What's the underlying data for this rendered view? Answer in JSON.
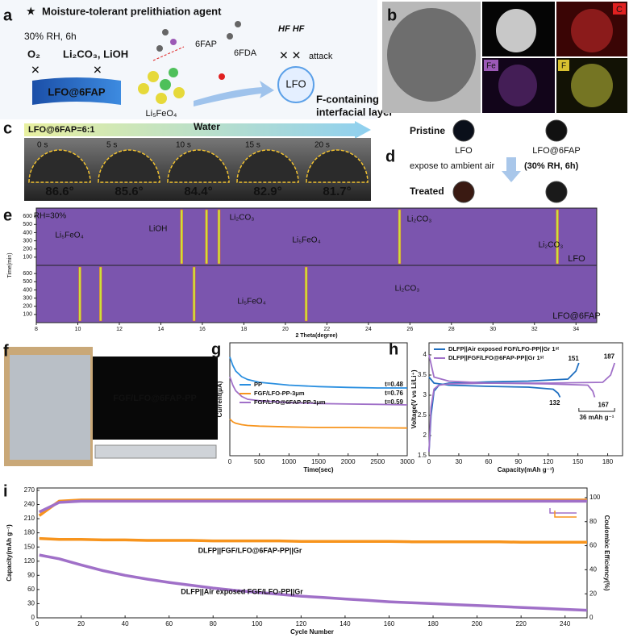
{
  "panels": {
    "letters": [
      "a",
      "b",
      "c",
      "d",
      "e",
      "f",
      "g",
      "h",
      "i"
    ],
    "a": {
      "title": "Moisture-tolerant prelithiation agent",
      "condition": "30% RH, 6h",
      "o2": "O₂",
      "byproducts": "Li₂CO₃, LiOH",
      "fap": "6FAP",
      "fda": "6FDA",
      "hf": "HF HF",
      "attack": "attack",
      "coated": "LFO@6FAP",
      "crystal": "Li₅FeO₄",
      "lfo": "LFO",
      "layer": [
        "F-containing",
        "interfacial layer"
      ]
    },
    "b": {
      "maps": [
        "C",
        "Fe",
        "F"
      ]
    },
    "c": {
      "ratio": "LFO@6FAP=6:1",
      "medium": "Water",
      "times": [
        "0 s",
        "5 s",
        "10 s",
        "15 s",
        "20 s"
      ],
      "angles": [
        "86.6°",
        "85.6°",
        "84.4°",
        "82.9°",
        "81.7°"
      ]
    },
    "d": {
      "pristine": "Pristine",
      "lfo": "LFO",
      "coated": "LFO@6FAP",
      "exposure": "expose to ambient air",
      "condition": "(30% RH, 6h)",
      "treated": "Treated"
    },
    "f": {
      "label": "FGF/LFO@6FAP-PP"
    }
  },
  "chart_data": [
    {
      "type": "contour",
      "xlabel": "2 Theta(degree)",
      "ylabel": "Time(min)",
      "xlim": [
        8,
        35
      ],
      "xticks": [
        8,
        10,
        12,
        14,
        16,
        18,
        20,
        22,
        24,
        26,
        28,
        30,
        32,
        34
      ],
      "ylim": [
        0,
        700
      ],
      "yticks": [
        100,
        200,
        300,
        400,
        500,
        600
      ],
      "background": "#7b55ae",
      "peak_color": "#c9e23c",
      "annotations": [
        "RH=30%",
        "Li₅FeO₄",
        "LiOH",
        "Li₂CO₃",
        "Li₅FeO₄",
        "Li₂CO₃",
        "Li₂CO₃",
        "Li₅FeO₄",
        "Li₂CO₃"
      ],
      "series": [
        {
          "name": "LFO",
          "color": "#2a9df4",
          "peaks": [
            15.0,
            16.2,
            16.8,
            25.5,
            33.1
          ]
        },
        {
          "name": "LFO@6FAP",
          "color": "#f7941d",
          "peaks": [
            10.1,
            11.1,
            15.6,
            21.0
          ]
        }
      ]
    },
    {
      "type": "line",
      "xlabel": "Time(sec)",
      "ylabel": "Current(μA)",
      "xlim": [
        0,
        3000
      ],
      "xticks": [
        0,
        500,
        1000,
        1500,
        2000,
        2500,
        3000
      ],
      "ylim": [
        0,
        4
      ],
      "legend": "upper left",
      "x": [
        0,
        50,
        100,
        200,
        300,
        500,
        1000,
        1500,
        2000,
        2500,
        3000
      ],
      "series": [
        {
          "name": "PP",
          "color": "#2a8fe0",
          "annotation": "t=0.48",
          "values": [
            3.5,
            3.2,
            3.0,
            2.8,
            2.7,
            2.6,
            2.5,
            2.45,
            2.42,
            2.4,
            2.4
          ]
        },
        {
          "name": "FGF/LFO-PP-3μm",
          "color": "#f7941d",
          "annotation": "t=0.76",
          "values": [
            1.3,
            1.2,
            1.15,
            1.1,
            1.07,
            1.05,
            1.02,
            1.0,
            1.0,
            0.99,
            0.98
          ]
        },
        {
          "name": "FGF/LFO@6FAP-PP-3μm",
          "color": "#a070c8",
          "annotation": "t=0.59",
          "values": [
            2.8,
            2.5,
            2.3,
            2.1,
            2.0,
            1.95,
            1.88,
            1.85,
            1.83,
            1.82,
            1.8
          ]
        }
      ]
    },
    {
      "type": "line",
      "xlabel": "Capacity(mAh g⁻¹)",
      "ylabel": "Voltage(V vs Li/Li⁺)",
      "xlim": [
        0,
        195
      ],
      "xticks": [
        0,
        30,
        60,
        90,
        120,
        150,
        180
      ],
      "ylim": [
        1.5,
        4.3
      ],
      "yticks": [
        1.5,
        2.0,
        2.5,
        3.0,
        3.5,
        4.0
      ],
      "legend": "upper left",
      "annotations": [
        151,
        132,
        187,
        167
      ],
      "gap_label": "36 mAh g⁻¹",
      "series": [
        {
          "name": "DLFP||Air exposed FGF/LFO-PP||Gr 1ˢᵗ",
          "color": "#1f6fc0",
          "x": [
            0,
            2,
            5,
            10,
            20,
            60,
            100,
            140,
            148,
            151,
            null,
            0,
            5,
            20,
            60,
            100,
            125,
            130,
            132
          ],
          "y": [
            1.6,
            2.5,
            3.1,
            3.25,
            3.3,
            3.33,
            3.35,
            3.4,
            3.6,
            3.8,
            null,
            3.45,
            3.3,
            3.25,
            3.22,
            3.2,
            3.15,
            3.05,
            2.95
          ]
        },
        {
          "name": "DLFP||FGF/LFO@6FAP-PP||Gr 1ˢᵗ",
          "color": "#a070c8",
          "x": [
            0,
            2,
            5,
            10,
            20,
            60,
            120,
            175,
            183,
            187,
            null,
            0,
            5,
            20,
            60,
            120,
            160,
            165,
            167
          ],
          "y": [
            1.6,
            2.7,
            3.15,
            3.25,
            3.28,
            3.3,
            3.3,
            3.32,
            3.5,
            3.8,
            null,
            4.0,
            3.45,
            3.35,
            3.3,
            3.28,
            3.25,
            3.1,
            2.95
          ]
        }
      ]
    },
    {
      "type": "line",
      "xlabel": "Cycle Number",
      "ylabel": "Capacity(mAh g⁻¹)",
      "y2label": "Coulombic Efficiency(%)",
      "xlim": [
        0,
        250
      ],
      "xticks": [
        0,
        20,
        40,
        60,
        80,
        100,
        120,
        140,
        160,
        180,
        200,
        220,
        240
      ],
      "ylim": [
        0,
        275
      ],
      "yticks": [
        0,
        30,
        60,
        90,
        120,
        150,
        180,
        210,
        240,
        270
      ],
      "y2lim": [
        0,
        108
      ],
      "y2ticks": [
        0,
        20,
        40,
        60,
        80,
        100
      ],
      "legend": "inline",
      "x": [
        1,
        10,
        20,
        30,
        40,
        50,
        60,
        70,
        80,
        90,
        100,
        110,
        120,
        130,
        140,
        150,
        160,
        170,
        180,
        190,
        200,
        210,
        220,
        230,
        240,
        250
      ],
      "series": [
        {
          "name": "DLFP||FGF/LFO@6FAP-PP||Gr",
          "color": "#f7941d",
          "values": [
            168,
            166,
            166,
            165,
            165,
            164,
            164,
            164,
            163,
            163,
            163,
            163,
            162,
            162,
            162,
            162,
            162,
            161,
            161,
            161,
            161,
            161,
            160,
            160,
            160,
            160
          ]
        },
        {
          "name": "DLFP||Air exposed FGF/LFO-PP||Gr",
          "color": "#a070c8",
          "values": [
            133,
            125,
            112,
            100,
            90,
            82,
            75,
            69,
            63,
            58,
            54,
            50,
            46,
            43,
            40,
            37,
            34,
            32,
            30,
            28,
            26,
            24,
            22,
            20,
            18,
            16
          ]
        },
        {
          "axis": "y2",
          "color": "#f7941d",
          "values": [
            85,
            97,
            98,
            98,
            98,
            98,
            98,
            98,
            98,
            98,
            98,
            98,
            98,
            98,
            98,
            98,
            98,
            98,
            98,
            98,
            98,
            98,
            98,
            98,
            98,
            98
          ]
        },
        {
          "axis": "y2",
          "color": "#a070c8",
          "values": [
            88,
            96,
            97,
            97,
            97,
            97,
            97,
            97,
            97,
            97,
            97,
            97,
            97,
            97,
            97,
            97,
            97,
            97,
            97,
            97,
            97,
            97,
            97,
            97,
            97,
            97
          ]
        }
      ]
    }
  ]
}
